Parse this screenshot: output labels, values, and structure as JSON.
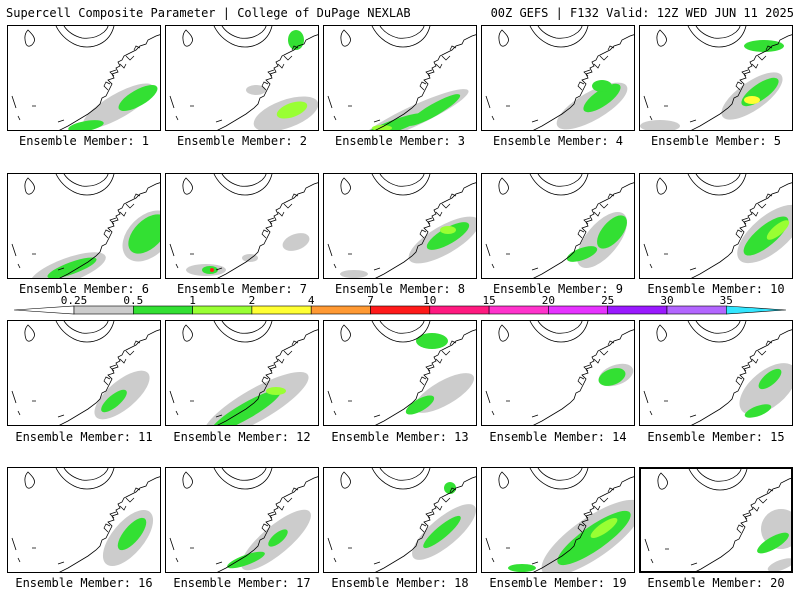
{
  "header": {
    "left_title": "Supercell Composite Parameter | College of DuPage NEXLAB",
    "right_title": "00Z GEFS | F132 Valid: 12Z WED JUN 11 2025"
  },
  "colorbar": {
    "labels": [
      "0.25",
      "0.5",
      "1",
      "2",
      "4",
      "7",
      "10",
      "15",
      "20",
      "25",
      "30",
      "35"
    ],
    "colors": [
      "#ffffff",
      "#cccccc",
      "#33e033",
      "#99ff33",
      "#ffff33",
      "#ff9933",
      "#ff1a1a",
      "#ff1a80",
      "#ff33cc",
      "#e633ff",
      "#9a1aff",
      "#b366ff",
      "#33e6ff"
    ]
  },
  "members": [
    {
      "label": "Ensemble Member: 1"
    },
    {
      "label": "Ensemble Member: 2"
    },
    {
      "label": "Ensemble Member: 3"
    },
    {
      "label": "Ensemble Member: 4"
    },
    {
      "label": "Ensemble Member: 5"
    },
    {
      "label": "Ensemble Member: 6"
    },
    {
      "label": "Ensemble Member: 7"
    },
    {
      "label": "Ensemble Member: 8"
    },
    {
      "label": "Ensemble Member: 9"
    },
    {
      "label": "Ensemble Member: 10"
    },
    {
      "label": "Ensemble Member: 11"
    },
    {
      "label": "Ensemble Member: 12"
    },
    {
      "label": "Ensemble Member: 13"
    },
    {
      "label": "Ensemble Member: 14"
    },
    {
      "label": "Ensemble Member: 15"
    },
    {
      "label": "Ensemble Member: 16"
    },
    {
      "label": "Ensemble Member: 17"
    },
    {
      "label": "Ensemble Member: 18"
    },
    {
      "label": "Ensemble Member: 19"
    },
    {
      "label": "Ensemble Member: 20"
    }
  ],
  "colors": {
    "gray": "#cccccc",
    "green": "#33e033",
    "lightgreen": "#99ff33",
    "yellow": "#ffff33",
    "red": "#ff1a1a"
  }
}
